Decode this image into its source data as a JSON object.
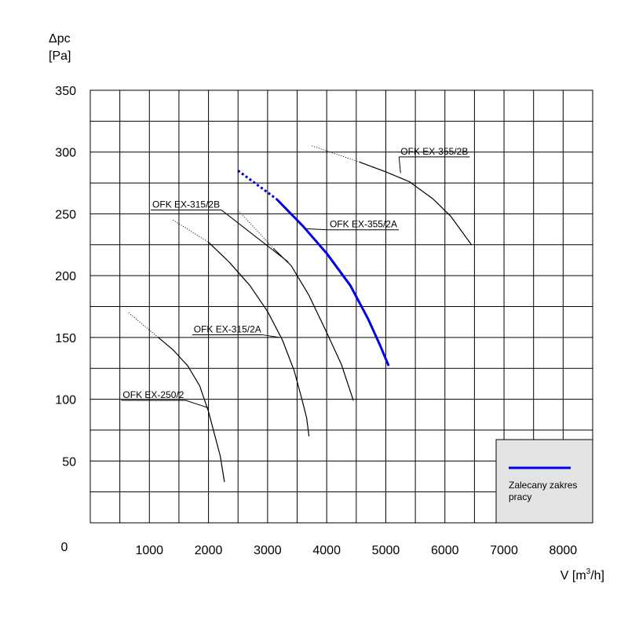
{
  "chart_data": {
    "type": "line",
    "title": "",
    "xlabel": "V [m³/h]",
    "ylabel": "Δpc [Pa]",
    "xlim": [
      0,
      8500
    ],
    "ylim": [
      0,
      350
    ],
    "x_ticks": [
      "1000",
      "2000",
      "3000",
      "4000",
      "5000",
      "6000",
      "7000",
      "8000"
    ],
    "x_tick_values": [
      1000,
      2000,
      3000,
      4000,
      5000,
      6000,
      7000,
      8000
    ],
    "y_ticks": [
      "50",
      "100",
      "150",
      "200",
      "250",
      "300",
      "350"
    ],
    "y_tick_values": [
      50,
      100,
      150,
      200,
      250,
      300,
      350
    ],
    "origin_label": "0",
    "y_label_line1": "Δpc",
    "y_label_line2": "[Pa]",
    "x_label_prefix": "V [m",
    "x_label_sup": "3",
    "x_label_suffix": "/h]",
    "grid": true,
    "legend_placement": "bottom-right",
    "legend_label_line1": "Zalecany zakres",
    "legend_label_line2": "pracy",
    "colors": {
      "recommended": "#0000e6",
      "curve": "#000000",
      "legend_bg": "#e3e3e3"
    },
    "series": [
      {
        "name": "OFK EX-250/2",
        "dotted": [
          [
            650,
            170
          ],
          [
            1150,
            150
          ]
        ],
        "solid": [
          [
            1150,
            150
          ],
          [
            1400,
            140
          ],
          [
            1650,
            127
          ],
          [
            1850,
            111
          ],
          [
            2000,
            90
          ],
          [
            2100,
            72
          ],
          [
            2200,
            54
          ],
          [
            2270,
            33
          ]
        ]
      },
      {
        "name": "OFK EX-315/2A",
        "dotted": [
          [
            1400,
            245
          ],
          [
            2000,
            227
          ]
        ],
        "solid": [
          [
            2000,
            227
          ],
          [
            2350,
            211
          ],
          [
            2700,
            192
          ],
          [
            3000,
            171
          ],
          [
            3250,
            148
          ],
          [
            3450,
            123
          ],
          [
            3580,
            100
          ],
          [
            3660,
            85
          ],
          [
            3700,
            70
          ]
        ]
      },
      {
        "name": "OFK EX-315/2B",
        "dotted": [
          [
            2500,
            253
          ],
          [
            3100,
            222
          ]
        ],
        "solid": [
          [
            3100,
            222
          ],
          [
            3400,
            208
          ],
          [
            3700,
            184
          ],
          [
            4000,
            154
          ],
          [
            4250,
            128
          ],
          [
            4450,
            99
          ]
        ]
      },
      {
        "name": "OFK EX-355/2A",
        "dotted": [
          [
            2500,
            285
          ],
          [
            3150,
            262
          ]
        ],
        "solid": [
          [
            3150,
            262
          ],
          [
            3600,
            240
          ],
          [
            4000,
            218
          ],
          [
            4400,
            192
          ],
          [
            4700,
            165
          ],
          [
            4900,
            144
          ],
          [
            5050,
            127
          ]
        ],
        "recommended": true
      },
      {
        "name": "OFK EX-355/2B",
        "dotted": [
          [
            3750,
            305
          ],
          [
            4550,
            292
          ]
        ],
        "solid": [
          [
            4550,
            292
          ],
          [
            5000,
            284
          ],
          [
            5400,
            276
          ],
          [
            5800,
            262
          ],
          [
            6100,
            248
          ],
          [
            6450,
            225
          ]
        ]
      }
    ],
    "labels": [
      {
        "series": "OFK EX-355/2B",
        "anchor": [
          5250,
          283
        ],
        "text_x": 5250,
        "text_y": 298
      },
      {
        "series": "OFK EX-315/2B",
        "anchor": [
          3350,
          211
        ],
        "text_x": 1050,
        "text_y": 255
      },
      {
        "series": "OFK EX-355/2A",
        "anchor": [
          3650,
          238
        ],
        "text_x": 4050,
        "text_y": 239
      },
      {
        "series": "OFK EX-315/2A",
        "anchor": [
          3200,
          150
        ],
        "text_x": 1750,
        "text_y": 154
      },
      {
        "series": "OFK EX-250/2",
        "anchor": [
          2000,
          93
        ],
        "text_x": 550,
        "text_y": 101
      }
    ]
  }
}
